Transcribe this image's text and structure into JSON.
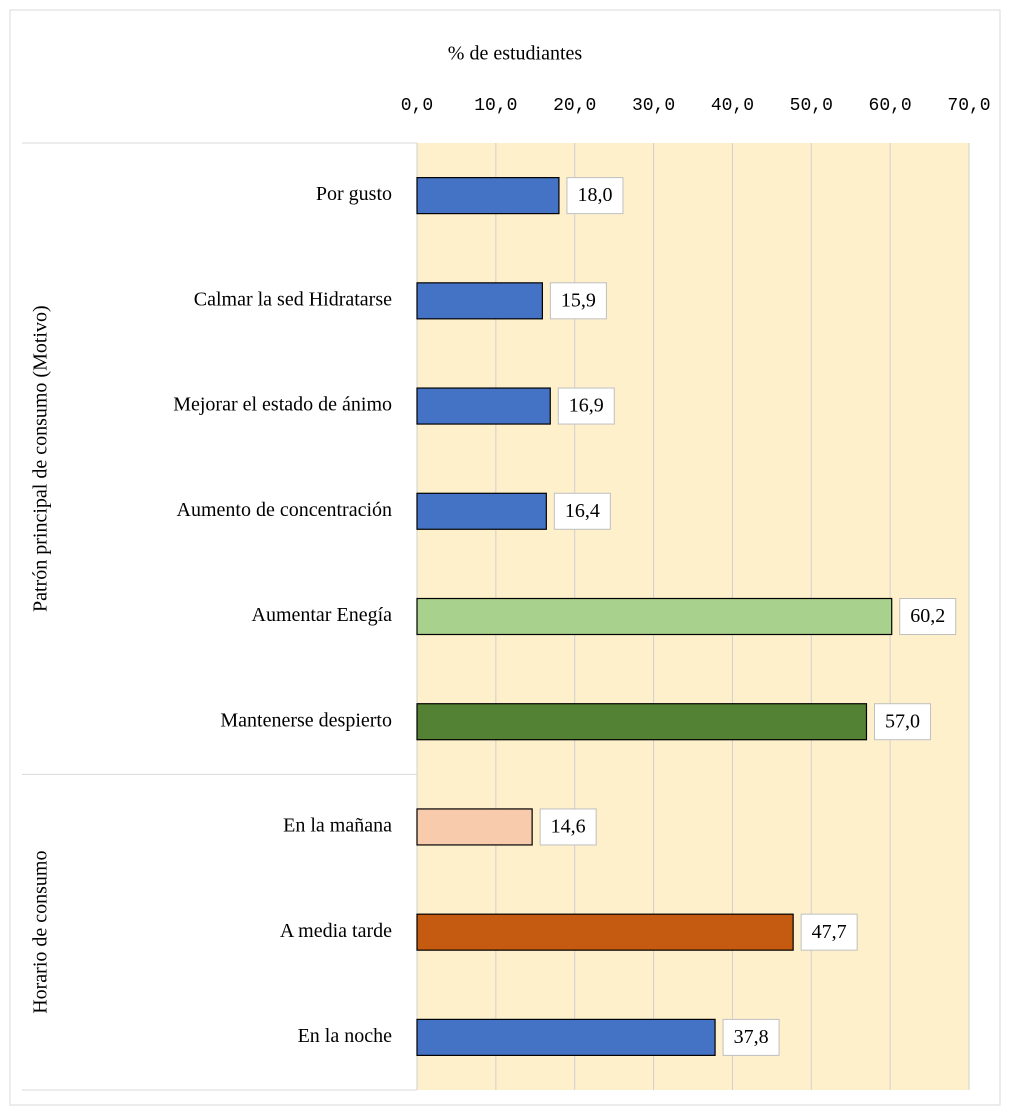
{
  "chart_data": {
    "type": "bar",
    "orientation": "horizontal",
    "xlabel": "% de estudiantes",
    "xlim": [
      0,
      70
    ],
    "xticks": [
      {
        "value": 0,
        "label": "0,0"
      },
      {
        "value": 10,
        "label": "10,0"
      },
      {
        "value": 20,
        "label": "20,0"
      },
      {
        "value": 30,
        "label": "30,0"
      },
      {
        "value": 40,
        "label": "40,0"
      },
      {
        "value": 50,
        "label": "50,0"
      },
      {
        "value": 60,
        "label": "60,0"
      },
      {
        "value": 70,
        "label": "70,0"
      }
    ],
    "grid": true,
    "plot_background": "#fff0cc",
    "groups": [
      {
        "name": "Patrón principal de consumo (Motivo)",
        "categories": [
          "Por gusto",
          "Calmar la sed Hidratarse",
          "Mejorar el estado de ánimo",
          "Aumento de concentración",
          "Aumentar Enegía",
          "Mantenerse despierto"
        ],
        "values": [
          18.0,
          15.9,
          16.9,
          16.4,
          60.2,
          57.0
        ],
        "value_labels": [
          "18,0",
          "15,9",
          "16,9",
          "16,4",
          "60,2",
          "57,0"
        ],
        "colors": [
          "#4472c4",
          "#4472c4",
          "#4472c4",
          "#4472c4",
          "#a9d18e",
          "#548235"
        ]
      },
      {
        "name": "Horario de consumo",
        "categories": [
          "En la mañana",
          "A media tarde",
          "En la noche"
        ],
        "values": [
          14.6,
          47.7,
          37.8
        ],
        "value_labels": [
          "14,6",
          "47,7",
          "37,8"
        ],
        "colors": [
          "#f8cbad",
          "#c55a11",
          "#4472c4"
        ]
      }
    ]
  }
}
